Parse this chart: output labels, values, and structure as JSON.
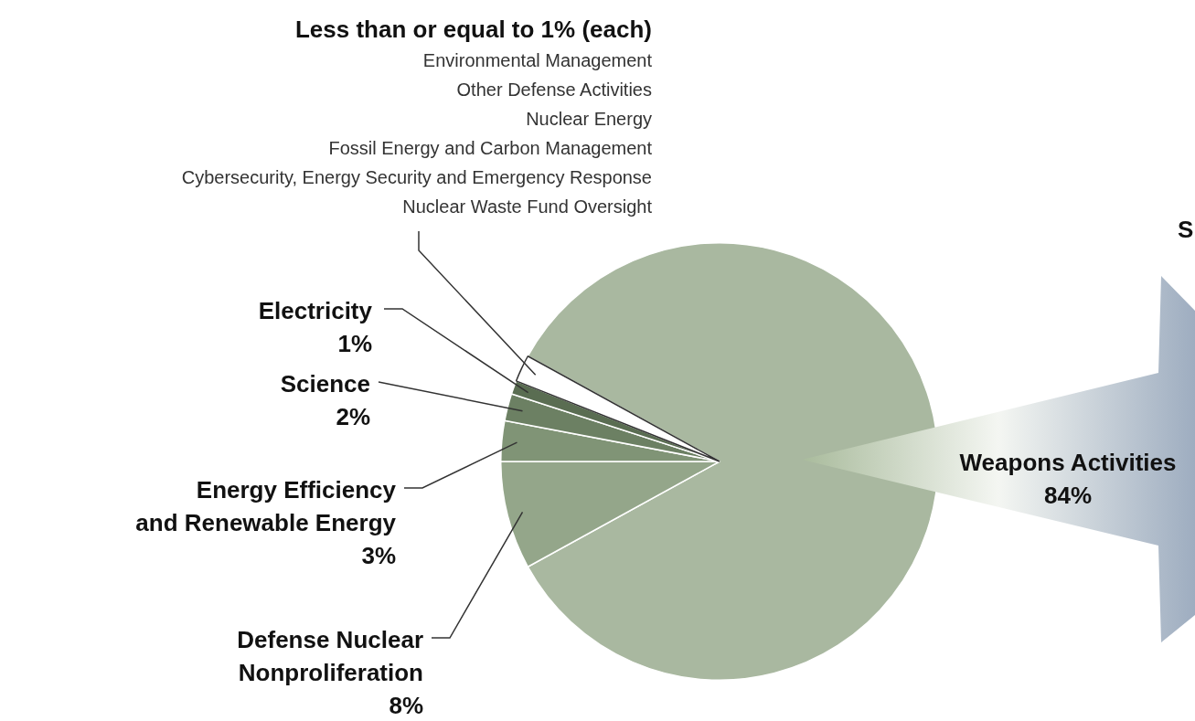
{
  "chart_data": {
    "type": "pie",
    "categories": [
      "Weapons Activities",
      "Defense Nuclear\nNonproliferation",
      "Energy Efficiency\nand Renewable Energy",
      "Science",
      "Electricity",
      "Less than or equal to 1% (each)\nEnvironmental Management\nOther Defense Activities\nNuclear Energy\nFossil Energy and Carbon Management\nCybersecurity, Energy Security and Emergency Response\nNuclear Waste Fund Oversight"
    ],
    "values": [
      84,
      8,
      3,
      2,
      1,
      2
    ],
    "colors": [
      "#a9b8a0",
      "#94a68a",
      "#809476",
      "#6c8063",
      "#5a6d52",
      "#ffffff"
    ],
    "value_labels": [
      "84%",
      "8%",
      "3%",
      "2%",
      "1%",
      null
    ],
    "annotations": [
      "S"
    ],
    "legend": false
  }
}
